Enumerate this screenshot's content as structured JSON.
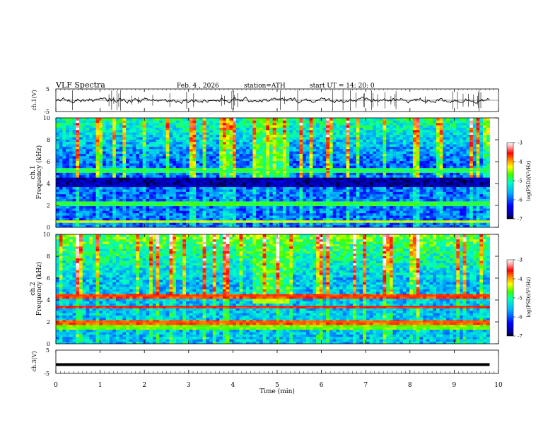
{
  "header": {
    "title": "VLF  Spectra",
    "date": "Feb. 4 ,  2026",
    "station": "station=ATH",
    "start": "start  UT  =   14: 20: 0"
  },
  "chart_data": [
    {
      "type": "line",
      "id": "ch1-waveform",
      "ylabel": "ch.1(V)",
      "ylim": [
        -5,
        5
      ],
      "y_ticks": [
        "5",
        "-5"
      ],
      "baseline": 0,
      "xlim": [
        0,
        10
      ],
      "data_end_min": 9.8,
      "description": "noisy waveform around ~0 V with sferic spikes"
    },
    {
      "type": "heatmap",
      "id": "ch1-spectrogram",
      "ylabel_channel": "ch.1",
      "ylabel": "Frequency  (kHz)",
      "ylim": [
        0,
        10
      ],
      "y_ticks": [
        "0",
        "2",
        "4",
        "6",
        "8",
        "10"
      ],
      "xlim": [
        0,
        10
      ],
      "data_end_min": 9.8,
      "colorbar": {
        "label": "log(PSD)(V²/Hz)",
        "range": [
          -7,
          -3
        ],
        "ticks": [
          "-3",
          "-4",
          "-5",
          "-6",
          "-7"
        ]
      },
      "features": [
        {
          "kind": "burst",
          "t_start": 4.4,
          "t_end": 5.25,
          "f_low": 3.7,
          "f_high": 4.3,
          "level": -4.9
        },
        {
          "kind": "dark_band",
          "f_low": 3.8,
          "f_high": 4.6,
          "level": -6.7
        },
        {
          "kind": "tone",
          "f": 2.2,
          "level": -4.8
        },
        {
          "kind": "tone",
          "f": 0.5,
          "level": -4.4
        },
        {
          "kind": "tone",
          "f": 5.2,
          "level": -4.9
        }
      ]
    },
    {
      "type": "heatmap",
      "id": "ch2-spectrogram",
      "ylabel_channel": "ch.2",
      "ylabel": "Frequency  (kHz)",
      "ylim": [
        0,
        10
      ],
      "y_ticks": [
        "0",
        "2",
        "4",
        "6",
        "8",
        "10"
      ],
      "xlim": [
        0,
        10
      ],
      "data_end_min": 9.8,
      "colorbar": {
        "label": "log(PSD)(V²/Hz)",
        "range": [
          -7,
          -3
        ],
        "ticks": [
          "-3",
          "-4",
          "-5",
          "-6",
          "-7"
        ]
      },
      "features": [
        {
          "kind": "burst",
          "t_start": 4.4,
          "t_end": 5.25,
          "f_low": 3.6,
          "f_high": 4.2,
          "level": -4.4
        },
        {
          "kind": "tone",
          "f": 3.4,
          "level": -3.6
        },
        {
          "kind": "tone",
          "f": 4.4,
          "level": -3.7
        },
        {
          "kind": "tone",
          "f": 2.0,
          "level": -3.8
        },
        {
          "kind": "tone",
          "f": 1.5,
          "level": -4.6
        }
      ]
    },
    {
      "type": "line",
      "id": "ch3-waveform",
      "ylabel": "ch.3(V)",
      "ylim": [
        -5,
        5
      ],
      "y_ticks": [
        "5",
        "-5"
      ],
      "constant_value": -1.2,
      "xlim": [
        0,
        10
      ],
      "data_end_min": 9.8
    }
  ],
  "x_axis": {
    "label": "Time  (min)",
    "range": [
      0,
      10
    ],
    "ticks": [
      "0",
      "1",
      "2",
      "3",
      "4",
      "5",
      "6",
      "7",
      "8",
      "9",
      "10"
    ]
  }
}
